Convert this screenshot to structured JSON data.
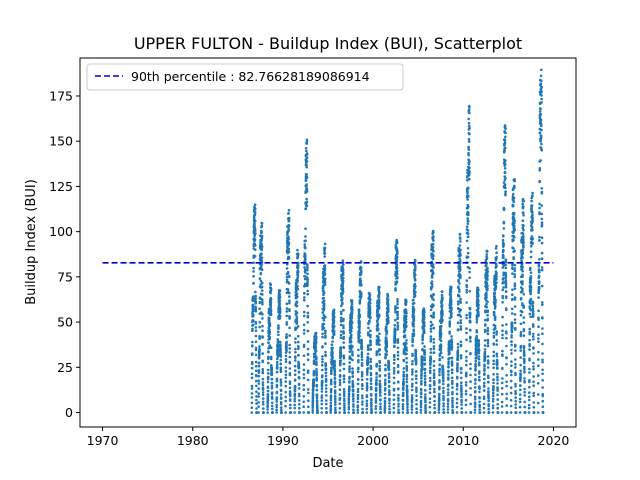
{
  "chart_data": {
    "type": "scatter",
    "title": "UPPER FULTON - Buildup Index (BUI), Scatterplot",
    "xlabel": "Date",
    "ylabel": "Buildup Index (BUI)",
    "xlim": [
      1967.5,
      2022.5
    ],
    "ylim": [
      -8,
      196
    ],
    "x_ticks": [
      1970,
      1980,
      1990,
      2000,
      2010,
      2020
    ],
    "y_ticks": [
      0,
      25,
      50,
      75,
      100,
      125,
      150,
      175
    ],
    "grid": false,
    "legend": {
      "placement": "top-left",
      "entries": [
        "90th percentile : 82.76628189086914"
      ]
    },
    "colors": {
      "points": "#1f77b4",
      "percentile_line": "#0000cd"
    },
    "reference_line": {
      "name": "90th percentile : 82.76628189086914",
      "y": 82.76628189086914,
      "x_range": [
        1970,
        2020
      ],
      "style": "dashed"
    },
    "seasons": [
      {
        "year": 1986,
        "start": 1986.55,
        "peak": 115
      },
      {
        "year": 1987,
        "start": 1987.3,
        "peak": 105
      },
      {
        "year": 1988,
        "start": 1988.3,
        "peak": 72
      },
      {
        "year": 1989,
        "start": 1989.3,
        "peak": 68
      },
      {
        "year": 1990,
        "start": 1990.3,
        "peak": 113
      },
      {
        "year": 1991,
        "start": 1991.3,
        "peak": 91
      },
      {
        "year": 1992,
        "start": 1992.3,
        "peak": 152
      },
      {
        "year": 1993,
        "start": 1993.3,
        "peak": 45
      },
      {
        "year": 1994,
        "start": 1994.3,
        "peak": 94
      },
      {
        "year": 1995,
        "start": 1995.3,
        "peak": 57
      },
      {
        "year": 1996,
        "start": 1996.3,
        "peak": 84
      },
      {
        "year": 1997,
        "start": 1997.3,
        "peak": 62
      },
      {
        "year": 1998,
        "start": 1998.3,
        "peak": 84
      },
      {
        "year": 1999,
        "start": 1999.3,
        "peak": 67
      },
      {
        "year": 2000,
        "start": 2000.3,
        "peak": 70
      },
      {
        "year": 2001,
        "start": 2001.3,
        "peak": 66
      },
      {
        "year": 2002,
        "start": 2002.3,
        "peak": 96
      },
      {
        "year": 2003,
        "start": 2003.3,
        "peak": 63
      },
      {
        "year": 2004,
        "start": 2004.3,
        "peak": 85
      },
      {
        "year": 2005,
        "start": 2005.3,
        "peak": 58
      },
      {
        "year": 2006,
        "start": 2006.3,
        "peak": 101
      },
      {
        "year": 2007,
        "start": 2007.3,
        "peak": 67
      },
      {
        "year": 2008,
        "start": 2008.3,
        "peak": 70
      },
      {
        "year": 2009,
        "start": 2009.3,
        "peak": 99
      },
      {
        "year": 2010,
        "start": 2010.3,
        "peak": 170
      },
      {
        "year": 2011,
        "start": 2011.3,
        "peak": 70
      },
      {
        "year": 2012,
        "start": 2012.3,
        "peak": 90
      },
      {
        "year": 2013,
        "start": 2013.3,
        "peak": 92
      },
      {
        "year": 2014,
        "start": 2014.3,
        "peak": 159
      },
      {
        "year": 2015,
        "start": 2015.3,
        "peak": 129
      },
      {
        "year": 2016,
        "start": 2016.3,
        "peak": 118
      },
      {
        "year": 2017,
        "start": 2017.3,
        "peak": 122
      },
      {
        "year": 2018,
        "start": 2018.3,
        "peak": 190
      }
    ]
  }
}
